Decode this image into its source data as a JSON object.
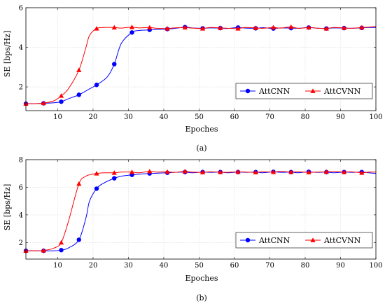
{
  "chart_data": [
    {
      "type": "line",
      "caption": "(a)",
      "xlabel": "Epoches",
      "ylabel": "SE [bps/Hz]",
      "xlim": [
        1,
        100
      ],
      "ylim": [
        0.8,
        6
      ],
      "xticks": [
        10,
        20,
        30,
        40,
        50,
        60,
        70,
        80,
        90,
        100
      ],
      "yticks": [
        2,
        4,
        6
      ],
      "grid": true,
      "legend": "bottom-right",
      "series": [
        {
          "name": "AttCNN",
          "color": "#0000ff",
          "marker": "circle",
          "x": [
            1,
            3,
            6,
            9,
            11,
            13,
            16,
            19,
            21,
            24,
            26,
            28,
            31,
            33,
            36,
            38,
            41,
            43,
            46,
            48,
            51,
            53,
            56,
            58,
            61,
            63,
            66,
            68,
            71,
            73,
            76,
            78,
            81,
            83,
            86,
            88,
            91,
            93,
            96,
            98,
            100
          ],
          "y": [
            1.15,
            1.15,
            1.17,
            1.2,
            1.25,
            1.4,
            1.6,
            1.9,
            2.1,
            2.5,
            3.15,
            4.2,
            4.75,
            4.85,
            4.88,
            4.9,
            4.92,
            4.95,
            5.02,
            4.98,
            4.96,
            4.98,
            4.97,
            4.95,
            5.0,
            4.97,
            4.96,
            4.99,
            4.95,
            4.98,
            4.97,
            4.96,
            5.0,
            4.97,
            4.95,
            4.98,
            4.97,
            4.96,
            4.98,
            5.0,
            5.0
          ]
        },
        {
          "name": "AttCVNN",
          "color": "#ff0000",
          "marker": "triangle",
          "x": [
            1,
            3,
            6,
            9,
            11,
            13,
            16,
            18,
            19,
            21,
            23,
            26,
            28,
            31,
            33,
            36,
            38,
            41,
            43,
            46,
            48,
            51,
            53,
            56,
            58,
            61,
            63,
            66,
            68,
            71,
            73,
            76,
            78,
            81,
            83,
            86,
            88,
            91,
            93,
            96,
            98,
            100
          ],
          "y": [
            1.15,
            1.15,
            1.18,
            1.3,
            1.55,
            1.9,
            2.85,
            4.0,
            4.6,
            4.95,
            5.0,
            5.0,
            4.97,
            5.02,
            4.98,
            5.0,
            4.96,
            4.95,
            4.98,
            5.0,
            4.97,
            4.95,
            5.0,
            4.98,
            4.96,
            4.95,
            5.0,
            4.98,
            4.96,
            5.0,
            4.97,
            5.03,
            4.96,
            5.0,
            4.97,
            4.95,
            5.0,
            4.98,
            4.96,
            5.0,
            5.02,
            5.05
          ]
        }
      ]
    },
    {
      "type": "line",
      "caption": "(b)",
      "xlabel": "Epoches",
      "ylabel": "SE [bps/Hz]",
      "xlim": [
        1,
        100
      ],
      "ylim": [
        0.8,
        8
      ],
      "xticks": [
        10,
        20,
        30,
        40,
        50,
        60,
        70,
        80,
        90,
        100
      ],
      "yticks": [
        2,
        4,
        6,
        8
      ],
      "grid": true,
      "legend": "bottom-right",
      "series": [
        {
          "name": "AttCNN",
          "color": "#0000ff",
          "marker": "circle",
          "x": [
            1,
            3,
            6,
            9,
            11,
            13,
            16,
            18,
            19,
            21,
            23,
            26,
            28,
            31,
            33,
            36,
            38,
            41,
            43,
            46,
            48,
            51,
            53,
            56,
            58,
            61,
            63,
            66,
            68,
            71,
            73,
            76,
            78,
            81,
            83,
            86,
            88,
            91,
            93,
            96,
            98,
            100
          ],
          "y": [
            1.4,
            1.4,
            1.4,
            1.4,
            1.45,
            1.6,
            2.2,
            3.8,
            5.0,
            5.9,
            6.3,
            6.65,
            6.8,
            6.9,
            6.95,
            7.0,
            7.02,
            7.05,
            7.08,
            7.1,
            7.05,
            7.1,
            7.08,
            7.1,
            7.05,
            7.1,
            7.08,
            7.1,
            7.05,
            7.12,
            7.08,
            7.1,
            7.05,
            7.12,
            7.08,
            7.1,
            7.05,
            7.1,
            7.08,
            7.1,
            7.05,
            7.0
          ]
        },
        {
          "name": "AttCVNN",
          "color": "#ff0000",
          "marker": "triangle",
          "x": [
            1,
            3,
            6,
            9,
            11,
            13,
            16,
            18,
            19,
            21,
            23,
            26,
            28,
            31,
            33,
            36,
            38,
            41,
            43,
            46,
            48,
            51,
            53,
            56,
            58,
            61,
            63,
            66,
            68,
            71,
            73,
            76,
            78,
            81,
            83,
            86,
            88,
            91,
            93,
            96,
            98,
            100
          ],
          "y": [
            1.4,
            1.4,
            1.42,
            1.6,
            2.0,
            3.5,
            6.25,
            6.8,
            6.9,
            7.0,
            7.05,
            7.05,
            7.1,
            7.1,
            7.05,
            7.15,
            7.1,
            7.12,
            7.08,
            7.15,
            7.1,
            7.08,
            7.12,
            7.1,
            7.08,
            7.12,
            7.1,
            7.08,
            7.12,
            7.1,
            7.15,
            7.1,
            7.12,
            7.08,
            7.1,
            7.12,
            7.15,
            7.1,
            7.12,
            7.05,
            7.1,
            7.1
          ]
        }
      ]
    }
  ]
}
